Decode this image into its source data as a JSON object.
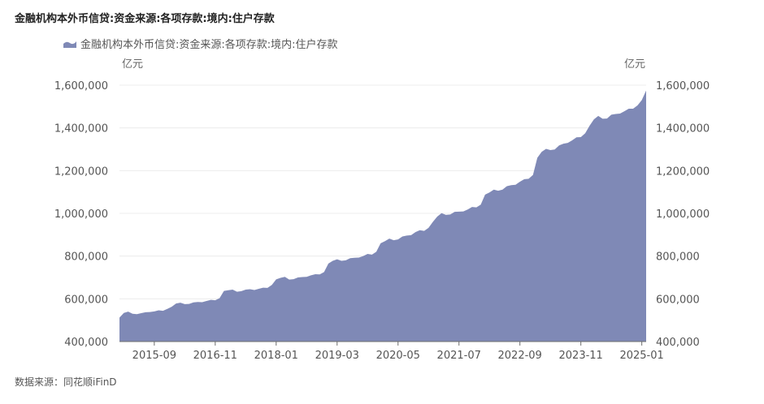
{
  "chart_data": {
    "type": "area",
    "title": "金融机构本外币信贷:资金来源:各项存款:境内:住户存款",
    "legend": {
      "label": "金融机构本外币信贷:资金来源:各项存款:境内:住户存款",
      "placement": "top-left"
    },
    "unit_left": "亿元",
    "unit_right": "亿元",
    "ylim": [
      400000,
      1600000
    ],
    "yticks": [
      "400,000",
      "600,000",
      "800,000",
      "1,000,000",
      "1,200,000",
      "1,400,000",
      "1,600,000"
    ],
    "ytick_values": [
      400000,
      600000,
      800000,
      1000000,
      1200000,
      1400000,
      1600000
    ],
    "xticks": [
      "2015-09",
      "2016-11",
      "2018-01",
      "2019-03",
      "2020-05",
      "2021-07",
      "2022-09",
      "2023-11",
      "2025-01"
    ],
    "x_start": "2015-01",
    "grid": true,
    "color": "#7f89b6",
    "series": [
      {
        "values": [
          512000,
          534000,
          540000,
          530000,
          528000,
          533000,
          537000,
          538000,
          541000,
          546000,
          544000,
          553000,
          563000,
          578000,
          582000,
          575000,
          576000,
          583000,
          585000,
          584000,
          590000,
          595000,
          593000,
          603000,
          637000,
          640000,
          643000,
          633000,
          636000,
          643000,
          645000,
          641000,
          647000,
          652000,
          651000,
          665000,
          691000,
          698000,
          703000,
          690000,
          692000,
          700000,
          702000,
          703000,
          710000,
          715000,
          714000,
          725000,
          765000,
          778000,
          785000,
          778000,
          780000,
          790000,
          792000,
          793000,
          800000,
          810000,
          807000,
          820000,
          860000,
          870000,
          882000,
          874000,
          878000,
          892000,
          896000,
          898000,
          912000,
          921000,
          918000,
          932000,
          960000,
          985000,
          1001000,
          993000,
          995000,
          1007000,
          1008000,
          1009000,
          1018000,
          1030000,
          1028000,
          1041000,
          1088000,
          1098000,
          1111000,
          1106000,
          1111000,
          1127000,
          1132000,
          1134000,
          1148000,
          1160000,
          1162000,
          1180000,
          1260000,
          1288000,
          1302000,
          1296000,
          1299000,
          1318000,
          1326000,
          1330000,
          1342000,
          1356000,
          1357000,
          1375000,
          1410000,
          1440000,
          1456000,
          1443000,
          1444000,
          1462000,
          1465000,
          1467000,
          1478000,
          1490000,
          1490000,
          1505000,
          1530000,
          1575000
        ]
      }
    ]
  },
  "footer": {
    "source": "数据来源：同花顺iFinD"
  }
}
